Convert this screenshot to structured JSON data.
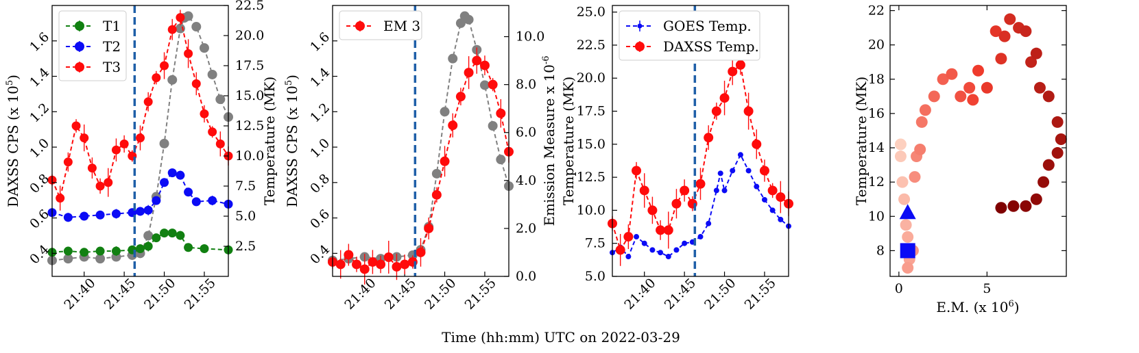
{
  "figure_label": "Time (hh:mm) UTC on 2022-03-29",
  "colors": {
    "green": "#118011",
    "blue": "#0b0bf5",
    "red": "#ff0b0b",
    "gray": "#808080",
    "flare_line": "#1f5fa8",
    "heat_dark": "#7f0000",
    "heat_light": "#fdd0bf"
  },
  "chart_data": [
    {
      "type": "scatter",
      "panel": "a",
      "x_ticks": [
        "21:40",
        "21:45",
        "21:50",
        "21:55"
      ],
      "x_range_min": [
        36,
        58
      ],
      "flare_marker_min": 46.3,
      "ylabel_left": "DAXSS CPS (x 10^5)",
      "ylabel_right": "Temperature (MK)",
      "ylim_left": [
        0.27,
        1.8
      ],
      "yticks_left": [
        "0.4",
        "0.6",
        "0.8",
        "1.0",
        "1.2",
        "1.4",
        "1.6"
      ],
      "ylim_right": [
        0.0,
        22.5
      ],
      "yticks_right": [
        "2.5",
        "5.0",
        "7.5",
        "10.0",
        "12.5",
        "15.0",
        "17.5",
        "20.0",
        "22.5"
      ],
      "legend": [
        "T1",
        "T2",
        "T3"
      ],
      "series": [
        {
          "name": "DAXSS CPS",
          "color": "gray",
          "axis": "left",
          "points": [
            [
              36,
              0.36
            ],
            [
              38,
              0.37
            ],
            [
              40,
              0.38
            ],
            [
              42,
              0.37
            ],
            [
              44,
              0.38
            ],
            [
              46,
              0.39
            ],
            [
              47,
              0.4
            ],
            [
              48,
              0.5
            ],
            [
              49,
              0.72
            ],
            [
              50,
              1.02
            ],
            [
              51,
              1.38
            ],
            [
              52,
              1.67
            ],
            [
              52.5,
              1.73
            ],
            [
              53,
              1.74
            ],
            [
              54,
              1.68
            ],
            [
              55,
              1.56
            ],
            [
              56,
              1.41
            ],
            [
              57,
              1.27
            ],
            [
              58,
              1.17
            ]
          ]
        },
        {
          "name": "T1",
          "color": "green",
          "axis": "right",
          "points": [
            [
              36,
              2.0
            ],
            [
              38,
              2.1
            ],
            [
              40,
              2.0
            ],
            [
              42,
              2.1
            ],
            [
              44,
              2.1
            ],
            [
              46,
              2.2
            ],
            [
              47,
              2.3
            ],
            [
              48,
              2.5
            ],
            [
              49,
              3.2
            ],
            [
              50,
              3.6
            ],
            [
              51,
              3.6
            ],
            [
              52,
              3.4
            ],
            [
              53,
              2.4
            ],
            [
              55,
              2.3
            ],
            [
              58,
              2.2
            ]
          ]
        },
        {
          "name": "T2",
          "color": "blue",
          "axis": "right",
          "points": [
            [
              36,
              5.3
            ],
            [
              38,
              4.9
            ],
            [
              40,
              5.0
            ],
            [
              42,
              5.1
            ],
            [
              44,
              5.2
            ],
            [
              46,
              5.3
            ],
            [
              47,
              5.4
            ],
            [
              48,
              5.5
            ],
            [
              49,
              6.3
            ],
            [
              50,
              7.8
            ],
            [
              51,
              8.6
            ],
            [
              52,
              8.4
            ],
            [
              53,
              7.0
            ],
            [
              54,
              6.2
            ],
            [
              56,
              6.3
            ],
            [
              58,
              6.0
            ]
          ]
        },
        {
          "name": "T3",
          "color": "red",
          "axis": "right",
          "points": [
            [
              36,
              8.0
            ],
            [
              37,
              6.5
            ],
            [
              38,
              9.5
            ],
            [
              39,
              12.5
            ],
            [
              40,
              11.5
            ],
            [
              41,
              9.0
            ],
            [
              42,
              7.5
            ],
            [
              43,
              7.8
            ],
            [
              44,
              10.5
            ],
            [
              45,
              11.0
            ],
            [
              46,
              10.0
            ],
            [
              47,
              11.5
            ],
            [
              48,
              14.5
            ],
            [
              49,
              16.5
            ],
            [
              50,
              17.5
            ],
            [
              51,
              20.5
            ],
            [
              52,
              21.5
            ],
            [
              53,
              18.5
            ],
            [
              54,
              16.0
            ],
            [
              55,
              13.5
            ],
            [
              56,
              12.0
            ],
            [
              57,
              11.0
            ],
            [
              58,
              10.0
            ]
          ]
        }
      ]
    },
    {
      "type": "scatter",
      "panel": "b",
      "x_ticks": [
        "21:40",
        "21:45",
        "21:50",
        "21:55"
      ],
      "x_range_min": [
        36,
        58
      ],
      "flare_marker_min": 46.3,
      "ylabel_left": "DAXSS CPS (x 10^5)",
      "ylabel_right": "Emission Measure x 10^-6",
      "ylim_left": [
        0.27,
        1.8
      ],
      "yticks_left": [
        "0.4",
        "0.6",
        "0.8",
        "1.0",
        "1.2",
        "1.4",
        "1.6"
      ],
      "ylim_right": [
        0.0,
        11.3
      ],
      "yticks_right": [
        "0.0",
        "2.0",
        "4.0",
        "6.0",
        "8.0",
        "10.0"
      ],
      "legend": [
        "EM 3"
      ],
      "series": [
        {
          "name": "DAXSS CPS",
          "color": "gray",
          "axis": "left",
          "points": [
            [
              36,
              0.36
            ],
            [
              38,
              0.37
            ],
            [
              40,
              0.38
            ],
            [
              42,
              0.37
            ],
            [
              44,
              0.38
            ],
            [
              46,
              0.39
            ],
            [
              47,
              0.42
            ],
            [
              48,
              0.55
            ],
            [
              49,
              0.85
            ],
            [
              50,
              1.2
            ],
            [
              51,
              1.5
            ],
            [
              52,
              1.7
            ],
            [
              52.5,
              1.74
            ],
            [
              53,
              1.72
            ],
            [
              54,
              1.55
            ],
            [
              55,
              1.35
            ],
            [
              56,
              1.12
            ],
            [
              57,
              0.93
            ],
            [
              58,
              0.78
            ]
          ]
        },
        {
          "name": "EM 3",
          "color": "red",
          "axis": "right",
          "points": [
            [
              36,
              0.6
            ],
            [
              37,
              0.5
            ],
            [
              38,
              0.9
            ],
            [
              39,
              0.5
            ],
            [
              40,
              0.3
            ],
            [
              41,
              0.6
            ],
            [
              42,
              0.5
            ],
            [
              43,
              0.8
            ],
            [
              44,
              0.4
            ],
            [
              45,
              0.5
            ],
            [
              46,
              0.6
            ],
            [
              47,
              1.0
            ],
            [
              48,
              2.0
            ],
            [
              49,
              3.4
            ],
            [
              50,
              4.8
            ],
            [
              51,
              6.3
            ],
            [
              52,
              7.5
            ],
            [
              53,
              8.5
            ],
            [
              54,
              9.0
            ],
            [
              55,
              8.8
            ],
            [
              56,
              8.0
            ],
            [
              57,
              6.8
            ],
            [
              58,
              5.2
            ]
          ]
        }
      ]
    },
    {
      "type": "scatter",
      "panel": "c",
      "x_ticks": [
        "21:40",
        "21:45",
        "21:50",
        "21:55"
      ],
      "x_range_min": [
        36,
        58
      ],
      "flare_marker_min": 46.3,
      "ylabel_left": "Temperature (MK)",
      "ylim_left": [
        5.0,
        25.5
      ],
      "yticks_left": [
        "5.0",
        "7.5",
        "10.0",
        "12.5",
        "15.0",
        "17.5",
        "20.0",
        "22.5",
        "25.0"
      ],
      "legend": [
        "GOES Temp.",
        "DAXSS Temp."
      ],
      "series": [
        {
          "name": "GOES Temp.",
          "color": "blue",
          "points": [
            [
              36,
              6.8
            ],
            [
              37,
              7.2
            ],
            [
              38,
              6.5
            ],
            [
              39,
              8.0
            ],
            [
              40,
              7.5
            ],
            [
              41,
              7.0
            ],
            [
              42,
              6.8
            ],
            [
              43,
              6.5
            ],
            [
              44,
              7.0
            ],
            [
              45,
              7.5
            ],
            [
              46,
              7.6
            ],
            [
              47,
              8.0
            ],
            [
              48,
              9.0
            ],
            [
              49,
              11.5
            ],
            [
              49.5,
              12.8
            ],
            [
              50,
              11.5
            ],
            [
              51,
              13.0
            ],
            [
              52,
              14.2
            ],
            [
              53,
              13.0
            ],
            [
              54,
              11.8
            ],
            [
              55,
              10.8
            ],
            [
              56,
              10.0
            ],
            [
              57,
              9.3
            ],
            [
              58,
              8.8
            ]
          ]
        },
        {
          "name": "DAXSS Temp.",
          "color": "red",
          "points": [
            [
              36,
              9.0
            ],
            [
              37,
              7.0
            ],
            [
              38,
              8.0
            ],
            [
              39,
              13.0
            ],
            [
              40,
              11.5
            ],
            [
              41,
              10.0
            ],
            [
              42,
              8.5
            ],
            [
              43,
              8.5
            ],
            [
              44,
              10.5
            ],
            [
              45,
              11.5
            ],
            [
              46,
              10.5
            ],
            [
              47,
              12.0
            ],
            [
              48,
              15.5
            ],
            [
              49,
              17.5
            ],
            [
              50,
              18.5
            ],
            [
              51,
              20.5
            ],
            [
              52,
              21.0
            ],
            [
              53,
              17.5
            ],
            [
              54,
              15.0
            ],
            [
              55,
              13.0
            ],
            [
              56,
              11.5
            ],
            [
              57,
              11.0
            ],
            [
              58,
              10.5
            ]
          ]
        }
      ]
    },
    {
      "type": "scatter",
      "panel": "d",
      "xlabel": "E.M. (x 10^6)",
      "ylabel": "Temperature (MK)",
      "xlim": [
        -0.5,
        9.5
      ],
      "xticks": [
        "0",
        "5"
      ],
      "ylim": [
        6.5,
        22.3
      ],
      "yticks": [
        "8",
        "10",
        "12",
        "14",
        "16",
        "18",
        "20",
        "22"
      ],
      "points_em_temp": [
        [
          0.1,
          14.2
        ],
        [
          0.1,
          13.5
        ],
        [
          0.2,
          12.0
        ],
        [
          0.3,
          11.0
        ],
        [
          0.4,
          9.5
        ],
        [
          0.5,
          8.8
        ],
        [
          0.6,
          7.5
        ],
        [
          0.5,
          7.0
        ],
        [
          0.8,
          8.0
        ],
        [
          0.9,
          12.3
        ],
        [
          1.0,
          13.5
        ],
        [
          1.2,
          13.9
        ],
        [
          1.3,
          15.5
        ],
        [
          1.5,
          16.2
        ],
        [
          2.0,
          17.0
        ],
        [
          2.5,
          18.0
        ],
        [
          3.0,
          18.3
        ],
        [
          3.5,
          17.0
        ],
        [
          4.0,
          17.5
        ],
        [
          4.2,
          16.8
        ],
        [
          4.5,
          18.5
        ],
        [
          5.0,
          17.5
        ],
        [
          5.5,
          20.8
        ],
        [
          5.8,
          19.2
        ],
        [
          6.0,
          20.5
        ],
        [
          6.3,
          21.5
        ],
        [
          6.8,
          21.0
        ],
        [
          7.2,
          20.8
        ],
        [
          7.5,
          19.0
        ],
        [
          7.8,
          19.5
        ],
        [
          8.0,
          17.5
        ],
        [
          8.5,
          17.0
        ],
        [
          9.0,
          15.5
        ],
        [
          9.2,
          14.5
        ],
        [
          9.0,
          13.7
        ],
        [
          8.5,
          13.0
        ],
        [
          8.2,
          12.0
        ],
        [
          7.8,
          11.0
        ],
        [
          7.2,
          10.6
        ],
        [
          6.5,
          10.6
        ],
        [
          5.8,
          10.5
        ]
      ],
      "start_marker": {
        "shape": "square",
        "em": 0.5,
        "temp": 8.0
      },
      "peak_marker": {
        "shape": "triangle",
        "em": 0.5,
        "temp": 10.2
      }
    }
  ]
}
